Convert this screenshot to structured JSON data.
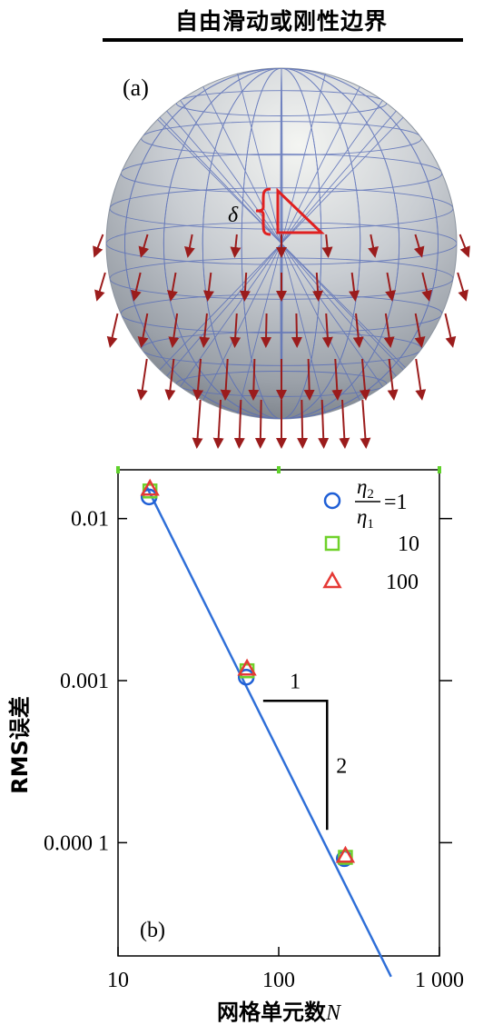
{
  "header": {
    "title": "自由滑动或刚性边界"
  },
  "panel_a": {
    "label": "(a)",
    "symbol": "δ"
  },
  "chart_data": {
    "type": "scatter",
    "panel_label": "(b)",
    "xlabel": "网格单元数",
    "xlabel_var": "N",
    "ylabel": "RMS误差",
    "xscale": "log",
    "yscale": "log",
    "xlim": [
      10,
      1000
    ],
    "ylim": [
      2e-05,
      0.02
    ],
    "xticks": [
      {
        "value": 10,
        "label": "10"
      },
      {
        "value": 100,
        "label": "100"
      },
      {
        "value": 1000,
        "label": "1 000"
      }
    ],
    "yticks": [
      {
        "value": 0.01,
        "label": "0.01"
      },
      {
        "value": 0.001,
        "label": "0.001"
      },
      {
        "value": 0.0001,
        "label": "0.000 1"
      }
    ],
    "series": [
      {
        "name": "=1",
        "marker": "circle",
        "color": "#1f5fd6",
        "points": [
          [
            15.6,
            0.0136
          ],
          [
            62.8,
            0.00105
          ],
          [
            256,
            7.97e-05
          ]
        ]
      },
      {
        "name": "10",
        "marker": "square",
        "color": "#6fd12a",
        "points": [
          [
            15.8,
            0.0148
          ],
          [
            63.5,
            0.00115
          ],
          [
            260,
            8.12e-05
          ]
        ]
      },
      {
        "name": "100",
        "marker": "triangle",
        "color": "#e53935",
        "points": [
          [
            15.8,
            0.0152
          ],
          [
            63.5,
            0.00118
          ],
          [
            260,
            8.25e-05
          ]
        ]
      }
    ],
    "legend": {
      "position": "top-right",
      "eta_top": "η",
      "eta_top_sub": "2",
      "eta_bottom": "η",
      "eta_bottom_sub": "1"
    },
    "fit_line": {
      "color": "#2f6fd8",
      "x": [
        15,
        500
      ],
      "y": [
        0.0159,
        1.49e-05
      ]
    },
    "slope_triangle": {
      "run_label": "1",
      "rise_label": "2",
      "corner": [
        80,
        0.00075
      ],
      "x_end": 200,
      "y_end": 0.00012
    },
    "grid": false
  }
}
